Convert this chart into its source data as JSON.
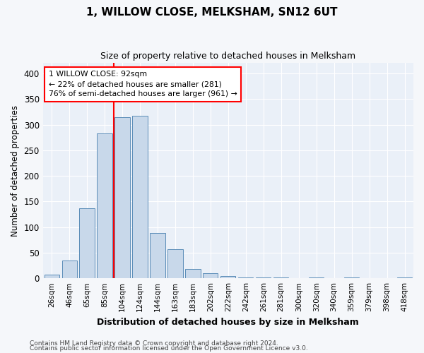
{
  "title": "1, WILLOW CLOSE, MELKSHAM, SN12 6UT",
  "subtitle": "Size of property relative to detached houses in Melksham",
  "xlabel": "Distribution of detached houses by size in Melksham",
  "ylabel": "Number of detached properties",
  "bar_color": "#c8d8ea",
  "bar_edge_color": "#5b8db8",
  "background_color": "#eaf0f8",
  "grid_color": "#ffffff",
  "fig_background": "#f5f7fa",
  "categories": [
    "26sqm",
    "46sqm",
    "65sqm",
    "85sqm",
    "104sqm",
    "124sqm",
    "144sqm",
    "163sqm",
    "183sqm",
    "202sqm",
    "222sqm",
    "242sqm",
    "261sqm",
    "281sqm",
    "300sqm",
    "320sqm",
    "340sqm",
    "359sqm",
    "379sqm",
    "398sqm",
    "418sqm"
  ],
  "values": [
    7,
    35,
    137,
    283,
    315,
    317,
    89,
    57,
    18,
    10,
    4,
    2,
    1,
    1,
    0,
    2,
    0,
    1,
    0,
    0,
    2
  ],
  "ylim": [
    0,
    420
  ],
  "yticks": [
    0,
    50,
    100,
    150,
    200,
    250,
    300,
    350,
    400
  ],
  "vline_x_index": 3.5,
  "property_label": "1 WILLOW CLOSE: 92sqm",
  "pct_smaller": "22% of detached houses are smaller (281)",
  "pct_larger": "76% of semi-detached houses are larger (961)",
  "footer1": "Contains HM Land Registry data © Crown copyright and database right 2024.",
  "footer2": "Contains public sector information licensed under the Open Government Licence v3.0."
}
